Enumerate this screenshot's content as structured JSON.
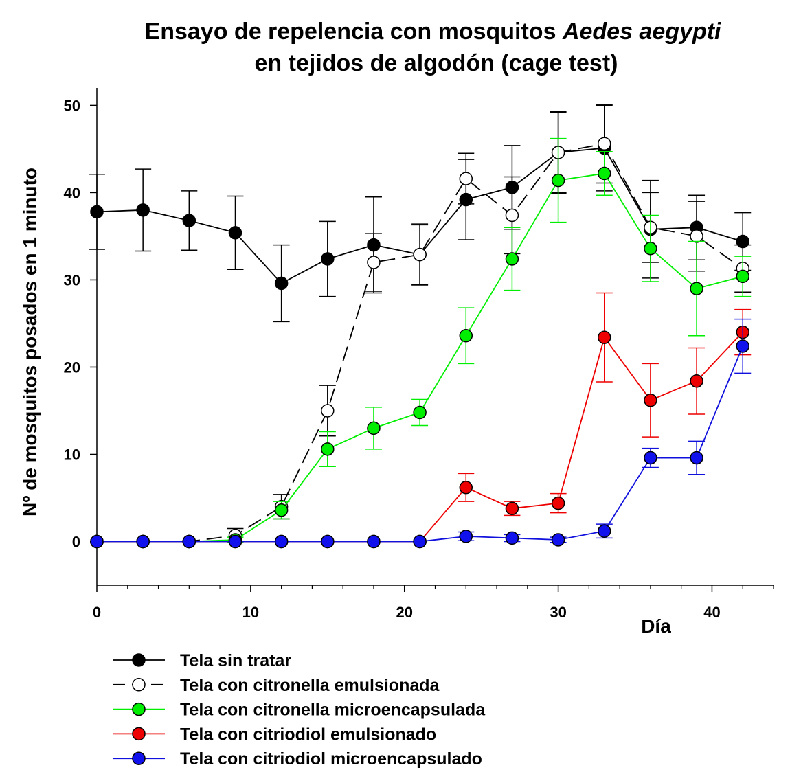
{
  "chart_data": {
    "type": "line",
    "title_line1_prefix": "Ensayo de repelencia con mosquitos ",
    "title_line1_italic": "Aedes aegypti",
    "title_line2": "en tejidos de algodón (cage test)",
    "xlabel": "Día",
    "ylabel": "Nº de mosquitos posados en 1 minuto",
    "xlim": [
      0,
      44
    ],
    "ylim": [
      -5,
      52
    ],
    "xticks": [
      0,
      10,
      20,
      30,
      40
    ],
    "yticks": [
      0,
      10,
      20,
      30,
      40,
      50
    ],
    "x": [
      0,
      3,
      6,
      9,
      12,
      15,
      18,
      21,
      24,
      27,
      30,
      33,
      36,
      39,
      42
    ],
    "grid": false,
    "legend_position": "bottom",
    "series": [
      {
        "name": "Tela sin tratar",
        "color": "#000000",
        "marker_fill": "#000000",
        "dash": "solid",
        "values": [
          37.8,
          38.0,
          36.8,
          35.4,
          29.6,
          32.4,
          34.0,
          32.9,
          39.2,
          40.6,
          44.6,
          45.1,
          35.8,
          36.0,
          34.4
        ],
        "errors": [
          4.3,
          4.7,
          3.4,
          4.2,
          4.4,
          4.3,
          5.5,
          3.4,
          4.6,
          4.8,
          4.7,
          4.9,
          5.6,
          3.7,
          3.3
        ]
      },
      {
        "name": "Tela con citronella emulsionada",
        "color": "#000000",
        "marker_fill": "#ffffff",
        "dash": "dashed",
        "values": [
          0,
          0,
          0,
          0.7,
          4.0,
          15.0,
          32.0,
          32.9,
          41.6,
          37.4,
          44.6,
          45.6,
          36.0,
          35.0,
          31.3
        ],
        "errors": [
          0,
          0,
          0,
          0.8,
          1.4,
          2.9,
          3.3,
          3.5,
          2.9,
          4.4,
          4.6,
          4.5,
          4.0,
          4.0,
          2.7
        ]
      },
      {
        "name": "Tela con citronella microencapsulada",
        "color": "#00ee00",
        "marker_fill": "#00ee00",
        "dash": "solid",
        "values": [
          0,
          0,
          0,
          0.2,
          3.6,
          10.6,
          13.0,
          14.8,
          23.6,
          32.4,
          41.4,
          42.2,
          33.6,
          29.0,
          30.4
        ],
        "errors": [
          0,
          0,
          0,
          0.3,
          1.0,
          2.0,
          2.4,
          1.5,
          3.2,
          3.6,
          4.8,
          2.5,
          3.8,
          5.4,
          2.3
        ]
      },
      {
        "name": "Tela con citriodiol emulsionado",
        "color": "#ee0000",
        "marker_fill": "#ee0000",
        "dash": "solid",
        "values": [
          0,
          0,
          0,
          0,
          0,
          0,
          0,
          0,
          6.2,
          3.8,
          4.4,
          23.4,
          16.2,
          18.4,
          24.0
        ],
        "errors": [
          0,
          0,
          0,
          0,
          0,
          0,
          0,
          0,
          1.6,
          0.8,
          1.1,
          5.1,
          4.2,
          3.8,
          2.6
        ]
      },
      {
        "name": "Tela con citriodiol microencapsulado",
        "color": "#1111dd",
        "marker_fill": "#1111ee",
        "dash": "solid",
        "values": [
          0,
          0,
          0,
          0,
          0,
          0,
          0,
          0,
          0.6,
          0.4,
          0.2,
          1.2,
          9.6,
          9.6,
          22.4
        ],
        "errors": [
          0,
          0,
          0,
          0,
          0,
          0,
          0,
          0,
          0.5,
          0.4,
          0.3,
          0.8,
          1.1,
          1.9,
          3.1
        ]
      }
    ]
  }
}
